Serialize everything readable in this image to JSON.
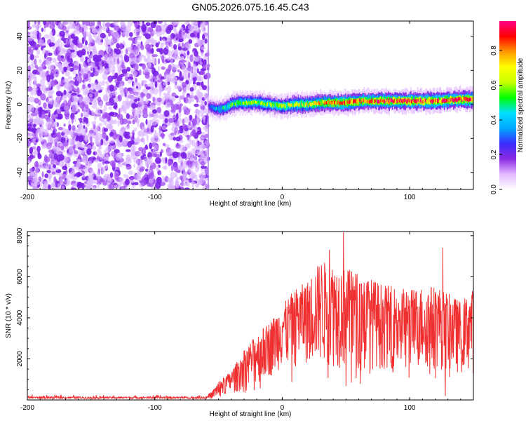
{
  "title": "GN05.2026.075.16.45.C43",
  "chart_data": [
    {
      "type": "heatmap",
      "name": "spectrogram",
      "xlabel": "Height of straight line (km)",
      "ylabel": "Frequency (Hz)",
      "xlim": [
        -200,
        150
      ],
      "ylim": [
        -50,
        49
      ],
      "x_ticks": [
        "-200",
        "-100",
        "0",
        "100"
      ],
      "y_ticks": [
        "-40",
        "-20",
        "0",
        "20",
        "40"
      ],
      "noise_region": {
        "x": [
          -200,
          -58
        ],
        "note": "broadband low-amplitude noise"
      },
      "signal_track": {
        "x": [
          -58,
          -55,
          -50,
          -45,
          -40,
          -35,
          -30,
          -20,
          -10,
          0,
          10,
          20,
          30,
          40,
          50,
          60,
          80,
          100,
          120,
          140,
          150
        ],
        "freq_hz": [
          -1,
          -2,
          -3,
          -2,
          0,
          1,
          1,
          1,
          0,
          -1,
          0,
          0,
          1,
          1,
          1,
          2,
          2,
          2,
          2,
          3,
          3
        ],
        "peak_amplitude": [
          0.25,
          0.35,
          0.45,
          0.5,
          0.55,
          0.55,
          0.6,
          0.6,
          0.6,
          0.65,
          0.7,
          0.7,
          0.75,
          0.8,
          0.85,
          0.85,
          0.88,
          0.9,
          0.92,
          0.9,
          0.9
        ]
      },
      "colorbar": {
        "label": "Normalized spectral amplitude",
        "range": [
          0.0,
          0.97
        ],
        "ticks": [
          "0.0",
          "0.2",
          "0.4",
          "0.6",
          "0.8"
        ],
        "colors": [
          "#ffffff",
          "#e3b8ff",
          "#8a2be2",
          "#3a2bff",
          "#00a8ff",
          "#00e0ff",
          "#00ff00",
          "#c8ff00",
          "#ffff00",
          "#ff9900",
          "#ff0000",
          "#ff0088"
        ]
      }
    },
    {
      "type": "line",
      "name": "snr",
      "xlabel": "Height of straight line (km)",
      "ylabel": "SNR (10 * v/v)",
      "xlim": [
        -200,
        150
      ],
      "ylim": [
        0,
        8200
      ],
      "x_ticks": [
        "-200",
        "-100",
        "0",
        "100"
      ],
      "y_ticks": [
        "2000",
        "4000",
        "6000",
        "8000"
      ],
      "color": "#f03030",
      "envelope": {
        "x": [
          -200,
          -150,
          -100,
          -60,
          -55,
          -50,
          -40,
          -30,
          -20,
          -10,
          0,
          10,
          20,
          30,
          40,
          50,
          60,
          80,
          100,
          120,
          130,
          140,
          150
        ],
        "low": [
          20,
          20,
          20,
          20,
          80,
          150,
          300,
          500,
          800,
          1100,
          1600,
          1600,
          1800,
          1800,
          1600,
          1500,
          1500,
          1500,
          1600,
          1500,
          1400,
          1300,
          1300
        ],
        "high": [
          250,
          230,
          240,
          220,
          400,
          900,
          1400,
          2400,
          3200,
          3800,
          4600,
          5400,
          5800,
          6800,
          6600,
          6400,
          6200,
          5600,
          5400,
          5600,
          5200,
          4800,
          5400
        ]
      },
      "spikes": [
        {
          "x": 37,
          "y": 7300
        },
        {
          "x": 48,
          "y": 8150
        },
        {
          "x": 126,
          "y": 7400
        },
        {
          "x": 128,
          "y": 200
        },
        {
          "x": 50,
          "y": 700
        }
      ]
    }
  ]
}
